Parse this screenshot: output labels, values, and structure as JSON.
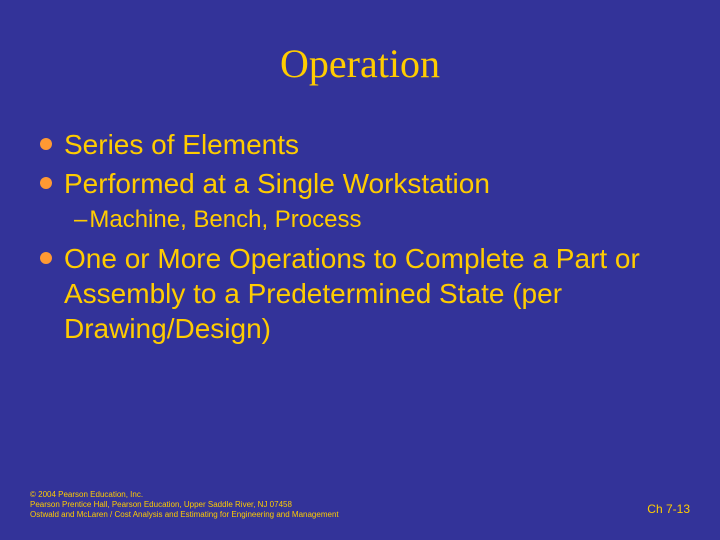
{
  "colors": {
    "background": "#333399",
    "title": "#FFCC00",
    "body": "#FFCC00",
    "bullet": "#FF9933",
    "footer": "#FFCC00"
  },
  "typography": {
    "title_fontsize": 40,
    "body_fontsize": 28,
    "sub_fontsize": 24,
    "footer_fontsize": 8,
    "pagenum_fontsize": 12,
    "title_family": "Times New Roman"
  },
  "title": "Operation",
  "bullets": {
    "b1": "Series of Elements",
    "b2": "Performed at a Single Workstation",
    "b2_sub": "Machine, Bench, Process",
    "b3": "One or More Operations to Complete a Part or Assembly to a Predetermined State (per Drawing/Design)"
  },
  "footer": {
    "line1": "© 2004 Pearson Education, Inc.",
    "line2": "Pearson Prentice Hall, Pearson Education, Upper Saddle River, NJ 07458",
    "line3": "Ostwald and McLaren / Cost Analysis and Estimating for Engineering and Management",
    "page": "Ch 7-13"
  }
}
